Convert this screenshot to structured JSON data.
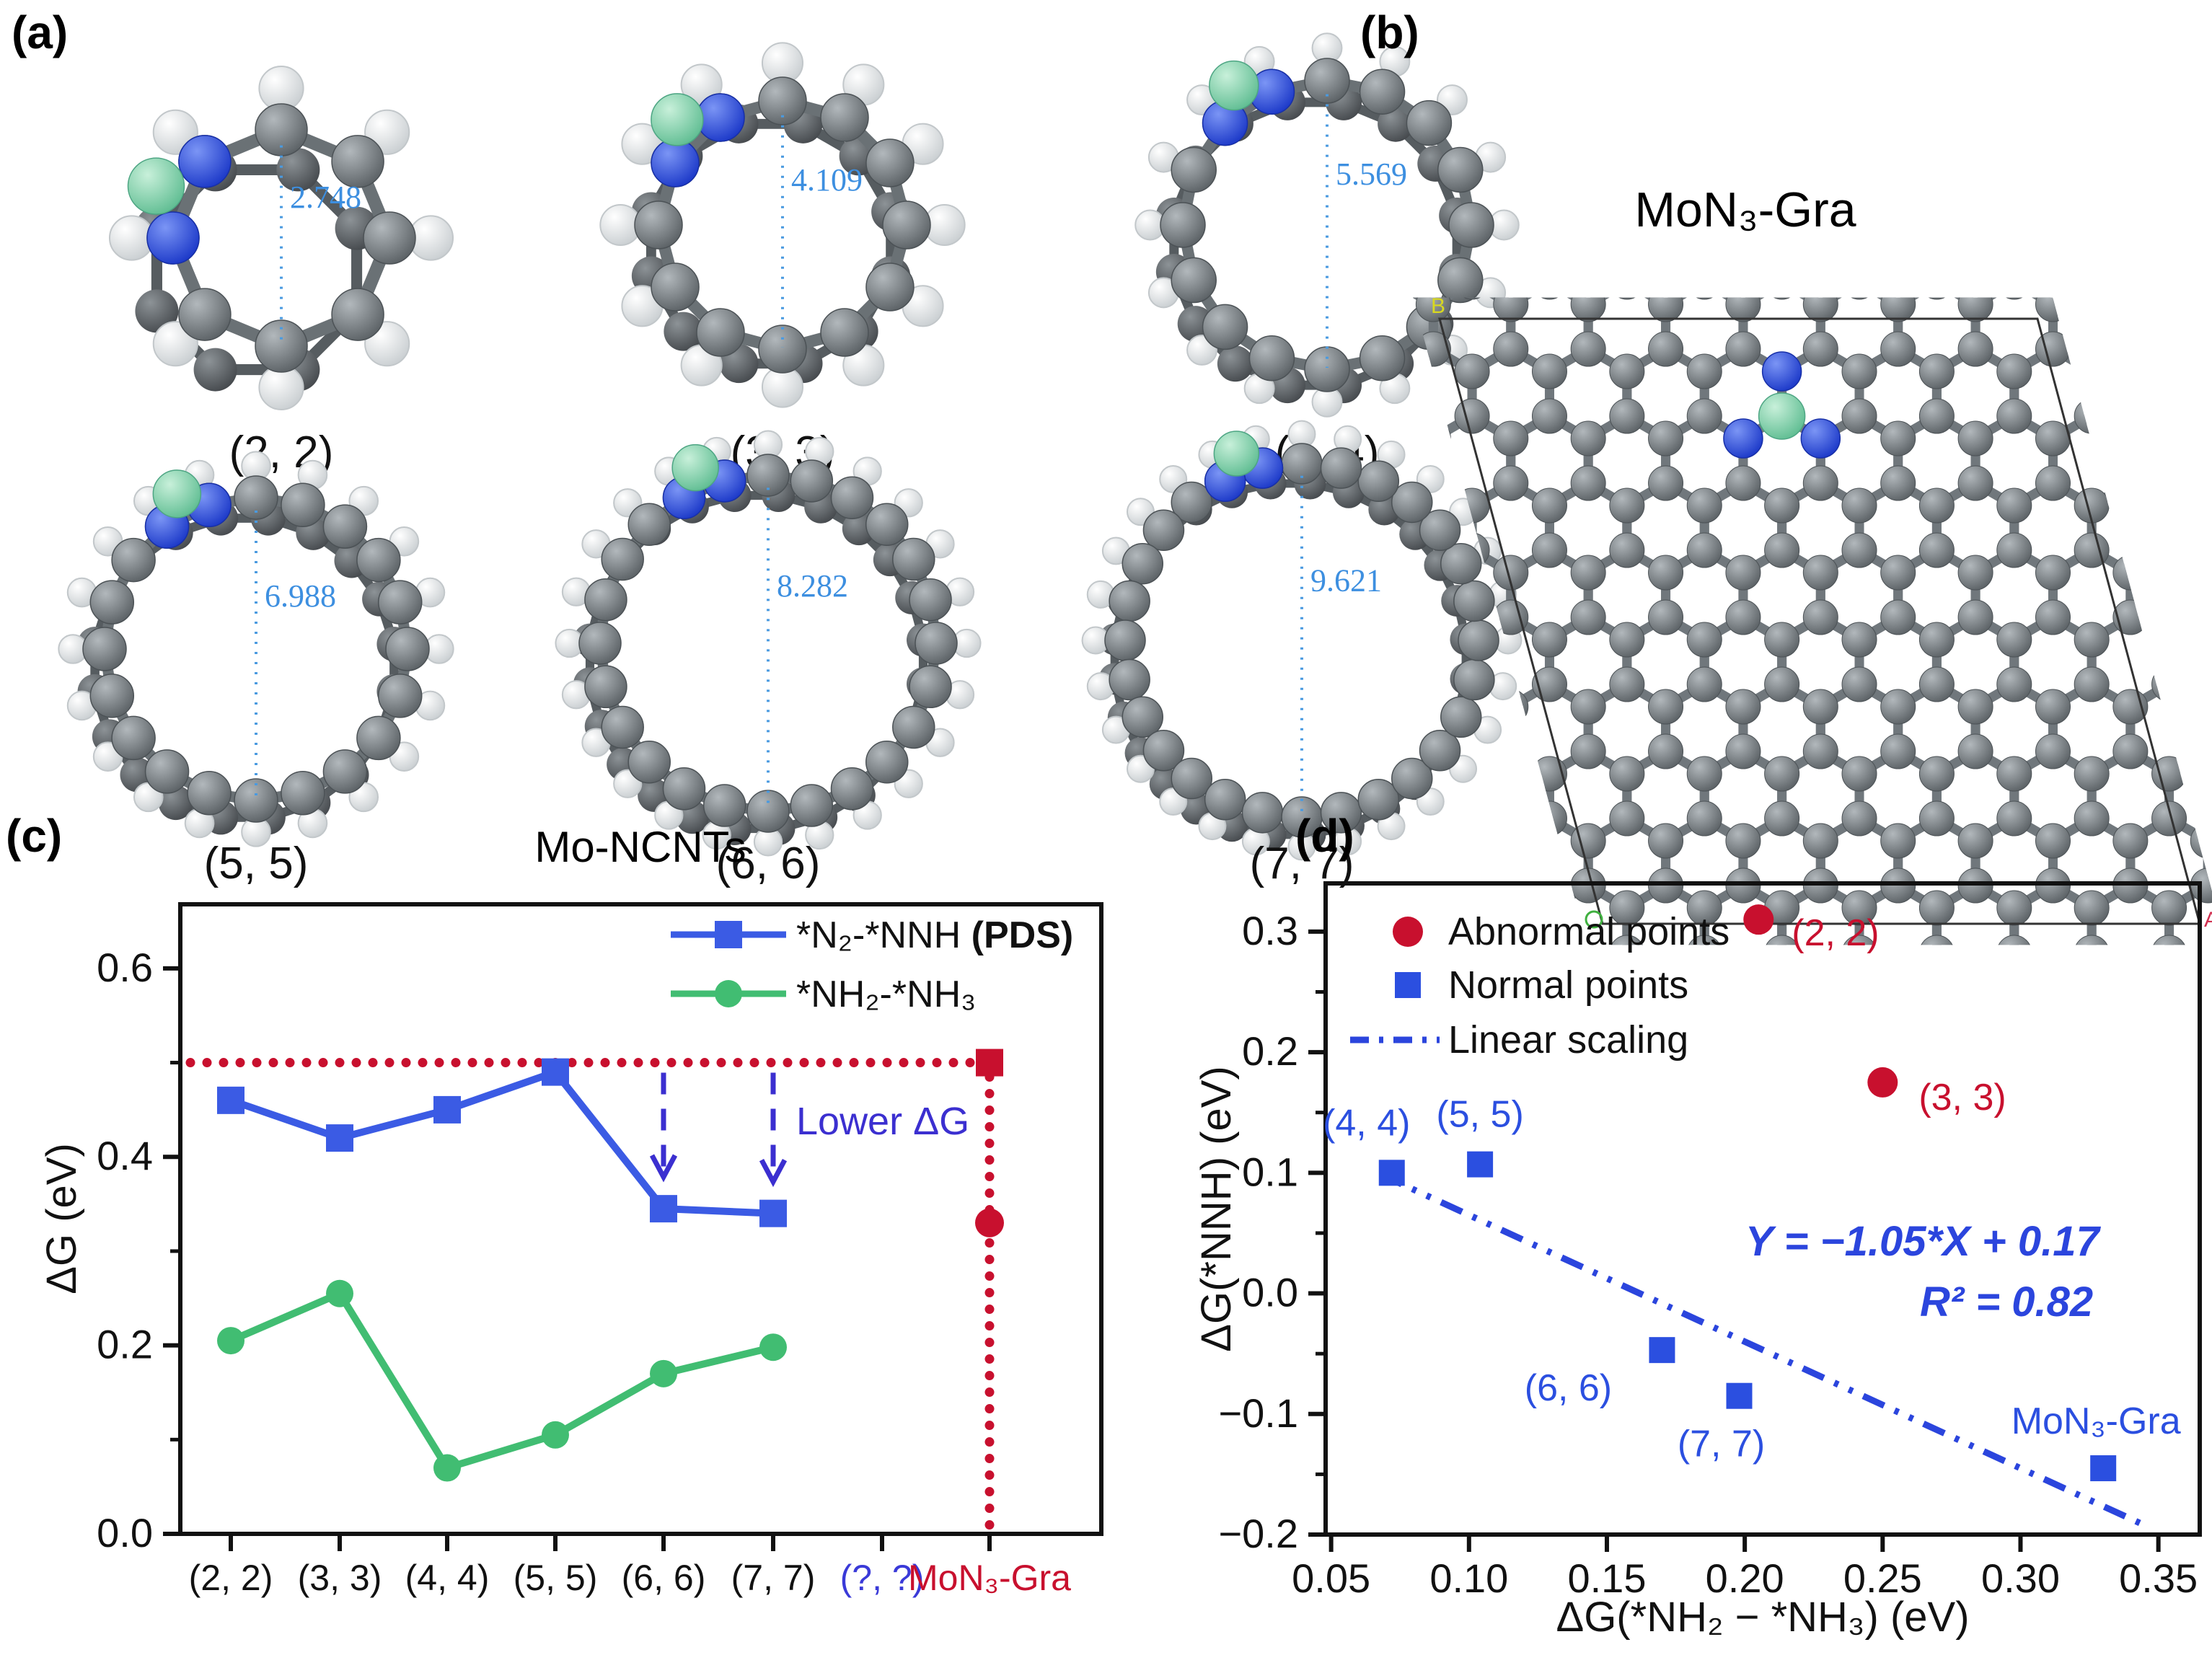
{
  "figure": {
    "panel_labels": {
      "a": "(a)",
      "b": "(b)",
      "c": "(c)",
      "d": "(d)"
    }
  },
  "panel_a": {
    "tubes": [
      {
        "label": "(2, 2)",
        "diameter": "2.748",
        "atoms": 8
      },
      {
        "label": "(3, 3)",
        "diameter": "4.109",
        "atoms": 12
      },
      {
        "label": "(4, 4)",
        "diameter": "5.569",
        "atoms": 16
      },
      {
        "label": "(5, 5)",
        "diameter": "6.988",
        "atoms": 20
      },
      {
        "label": "(6, 6)",
        "diameter": "8.282",
        "atoms": 24
      },
      {
        "label": "(7, 7)",
        "diameter": "9.621",
        "atoms": 28
      }
    ],
    "atom_colors": {
      "carbon": "#71787d",
      "hydrogen": "#eef0f1",
      "nitrogen": "#2b50e8",
      "molybdenum": "#8ed7b4"
    }
  },
  "panel_b": {
    "title": "MoN₃-Gra",
    "corner_labels": {
      "a": "A",
      "b": "B",
      "c": "C"
    },
    "corner_colors": {
      "a": "#d03050",
      "b": "#d8d820",
      "c": "#40b040"
    }
  },
  "chart_data": [
    {
      "type": "line",
      "title": "Mo-NCNTs",
      "ylabel": "ΔG (eV)",
      "ylim": [
        0,
        0.668
      ],
      "yticks": [
        0.0,
        0.2,
        0.4,
        0.6
      ],
      "yticks_minor": [
        0.1,
        0.3,
        0.5
      ],
      "categories": [
        "(2, 2)",
        "(3, 3)",
        "(4, 4)",
        "(5, 5)",
        "(6, 6)",
        "(7, 7)",
        "(?, ?)",
        "MoN₃-Gra"
      ],
      "category_colors": [
        "#111111",
        "#111111",
        "#111111",
        "#111111",
        "#111111",
        "#111111",
        "#3a3ad8",
        "#c8102e"
      ],
      "series": [
        {
          "name": "*N₂-*NNH",
          "bold_suffix": " (PDS)",
          "color": "#3b5be4",
          "marker": "square",
          "values": [
            0.46,
            0.42,
            0.45,
            0.49,
            0.345,
            0.34
          ]
        },
        {
          "name": "*NH₂-*NH₃",
          "bold_suffix": "",
          "color": "#41bd72",
          "marker": "circle",
          "values": [
            0.205,
            0.255,
            0.07,
            0.105,
            0.17,
            0.198
          ]
        }
      ],
      "reference": {
        "level": 0.5,
        "color": "#c8102e",
        "at_category": "MoN₃-Gra",
        "mon3_pds_value": 0.5,
        "mon3_nh_value": 0.33
      },
      "annotation": {
        "text": "Lower ΔG",
        "color": "#3b2fd0",
        "arrow_categories": [
          "(6, 6)",
          "(7, 7)"
        ]
      },
      "grid": false,
      "legend_position": "top-right"
    },
    {
      "type": "scatter",
      "xlabel": "ΔG(*NH₂ − *NH₃) (eV)",
      "ylabel": "ΔG(*NNH) (eV)",
      "xlim": [
        0.048,
        0.365
      ],
      "ylim": [
        -0.2,
        0.34
      ],
      "xticks": [
        0.05,
        0.1,
        0.15,
        0.2,
        0.25,
        0.3,
        0.35
      ],
      "yticks": [
        0.3,
        0.2,
        0.1,
        0.0,
        -0.1,
        -0.2
      ],
      "yticks_minor": [
        0.25,
        0.15,
        0.05,
        -0.05,
        -0.15
      ],
      "series": [
        {
          "name": "Abnormal points",
          "color": "#c8102e",
          "marker": "circle",
          "points": [
            {
              "label": "(2, 2)",
              "x": 0.205,
              "y": 0.31
            },
            {
              "label": "(3, 3)",
              "x": 0.25,
              "y": 0.175
            }
          ]
        },
        {
          "name": "Normal points",
          "color": "#2b4fe0",
          "marker": "square",
          "points": [
            {
              "label": "(4, 4)",
              "x": 0.072,
              "y": 0.1
            },
            {
              "label": "(5, 5)",
              "x": 0.104,
              "y": 0.107
            },
            {
              "label": "(6, 6)",
              "x": 0.17,
              "y": -0.047
            },
            {
              "label": "(7, 7)",
              "x": 0.198,
              "y": -0.085
            },
            {
              "label": "MoN₃-Gra",
              "x": 0.33,
              "y": -0.145
            }
          ]
        }
      ],
      "fit": {
        "name": "Linear scaling",
        "equation": "Y = −1.05*X + 0.17",
        "r2": "R² = 0.82",
        "slope": -1.05,
        "intercept": 0.17,
        "x_range": [
          0.068,
          0.347
        ],
        "color": "#2b45dd"
      },
      "grid": false,
      "legend_position": "top-left"
    }
  ]
}
